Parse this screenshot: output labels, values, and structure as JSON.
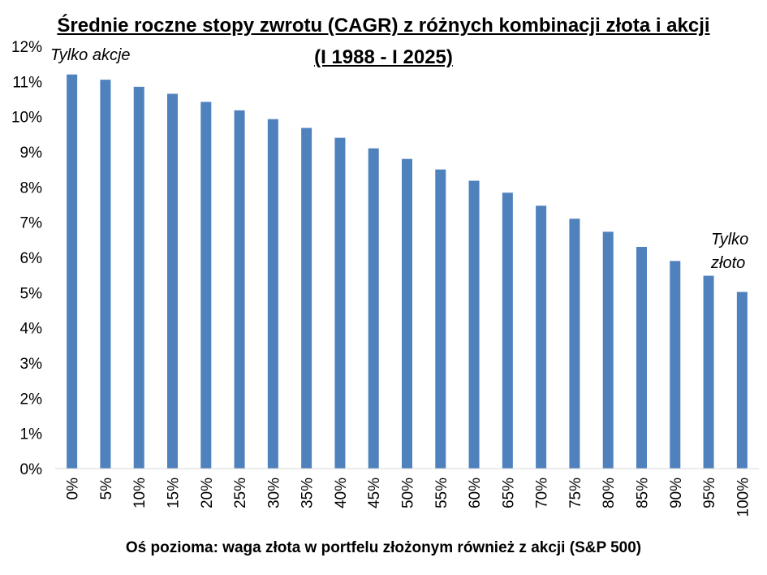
{
  "chart_data": {
    "type": "bar",
    "title": "Średnie roczne stopy zwrotu (CAGR) z różnych kombinacji złota i akcji",
    "subtitle": "(I 1988 - I 2025)",
    "xlabel": "Oś pozioma: waga złota w portfelu złożonym również z akcji (S&P 500)",
    "ylabel": "",
    "ylim": [
      0,
      12
    ],
    "y_ticks": [
      "0%",
      "1%",
      "2%",
      "3%",
      "4%",
      "5%",
      "6%",
      "7%",
      "8%",
      "9%",
      "10%",
      "11%",
      "12%"
    ],
    "categories": [
      "0%",
      "5%",
      "10%",
      "15%",
      "20%",
      "25%",
      "30%",
      "35%",
      "40%",
      "45%",
      "50%",
      "55%",
      "60%",
      "65%",
      "70%",
      "75%",
      "80%",
      "85%",
      "90%",
      "95%",
      "100%"
    ],
    "values": [
      11.2,
      11.05,
      10.85,
      10.65,
      10.42,
      10.18,
      9.93,
      9.68,
      9.4,
      9.1,
      8.8,
      8.5,
      8.18,
      7.84,
      7.47,
      7.1,
      6.73,
      6.3,
      5.9,
      5.48,
      5.02
    ],
    "bar_color": "#4F81BD",
    "grid": false,
    "annotations": {
      "left": "Tylko akcje",
      "right_line1": "Tylko",
      "right_line2": "złoto"
    }
  }
}
